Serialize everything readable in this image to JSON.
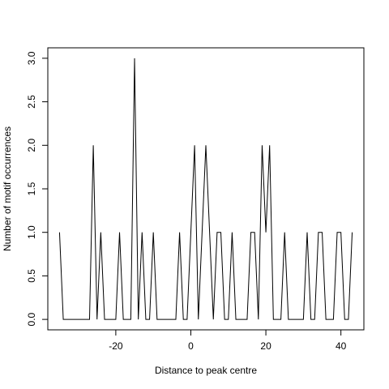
{
  "chart_data": {
    "type": "line",
    "xlabel": "Distance to peak centre",
    "ylabel": "Number of motif occurrences",
    "x": [
      -35,
      -34,
      -33,
      -32,
      -31,
      -30,
      -29,
      -28,
      -27,
      -26,
      -25,
      -24,
      -23,
      -22,
      -21,
      -20,
      -19,
      -18,
      -17,
      -16,
      -15,
      -14,
      -13,
      -12,
      -11,
      -10,
      -9,
      -8,
      -7,
      -6,
      -5,
      -4,
      -3,
      -2,
      -1,
      0,
      1,
      2,
      3,
      4,
      5,
      6,
      7,
      8,
      9,
      10,
      11,
      12,
      13,
      14,
      15,
      16,
      17,
      18,
      19,
      20,
      21,
      22,
      23,
      24,
      25,
      26,
      27,
      28,
      29,
      30,
      31,
      32,
      33,
      34,
      35,
      36,
      37,
      38,
      39,
      40,
      41,
      42,
      43
    ],
    "series": [
      {
        "color": "#000000",
        "values": [
          1,
          0,
          0,
          0,
          0,
          0,
          0,
          0,
          0,
          2,
          0,
          1,
          0,
          0,
          0,
          0,
          1,
          0,
          0,
          0,
          3,
          0,
          1,
          0,
          0,
          1,
          0,
          0,
          0,
          0,
          0,
          0,
          1,
          0,
          0,
          1,
          2,
          0,
          1,
          2,
          1,
          0,
          1,
          1,
          0,
          0,
          1,
          0,
          0,
          0,
          0,
          1,
          1,
          0,
          2,
          1,
          2,
          0,
          0,
          0,
          1,
          0,
          0,
          0,
          0,
          0,
          1,
          0,
          0,
          1,
          1,
          0,
          0,
          0,
          1,
          1,
          0,
          0,
          1
        ]
      }
    ],
    "xlim": [
      -38.12,
      46.12
    ],
    "ylim": [
      -0.12,
      3.12
    ],
    "xticks": [
      -20,
      0,
      20,
      40
    ],
    "yticks": [
      {
        "value": 0,
        "label": "0.0"
      },
      {
        "value": 0.5,
        "label": "0.5"
      },
      {
        "value": 1,
        "label": "1.0"
      },
      {
        "value": 1.5,
        "label": "1.5"
      },
      {
        "value": 2,
        "label": "2.0"
      },
      {
        "value": 2.5,
        "label": "2.5"
      },
      {
        "value": 3,
        "label": "3.0"
      }
    ]
  }
}
